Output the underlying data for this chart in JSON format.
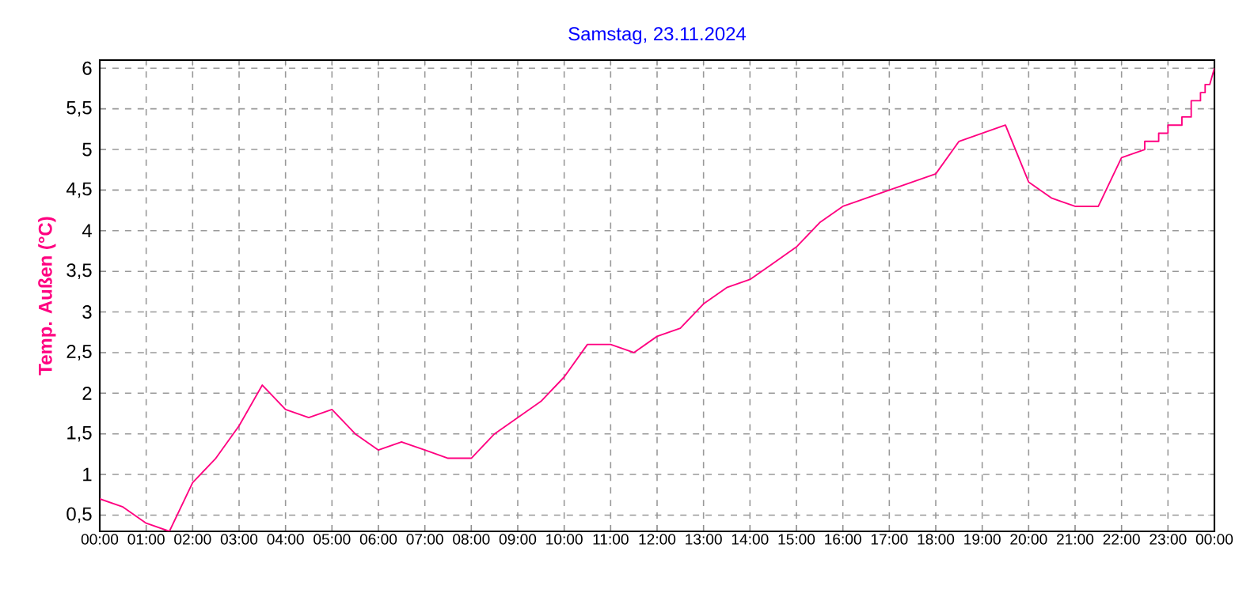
{
  "chart_data": {
    "type": "line",
    "title": "Samstag, 23.11.2024",
    "ylabel": "Temp. Außen (°C)",
    "x": [
      0,
      0.5,
      1,
      1.5,
      2,
      2.5,
      3,
      3.5,
      4,
      4.5,
      5,
      5.5,
      6,
      6.5,
      7,
      7.5,
      8,
      8.5,
      9,
      9.5,
      10,
      10.5,
      11,
      11.5,
      12,
      12.5,
      13,
      13.5,
      14,
      14.5,
      15,
      15.5,
      16,
      16.5,
      17,
      17.5,
      18,
      18.5,
      19,
      19.5,
      20,
      20.5,
      21,
      21.5,
      22,
      22.5,
      22.5,
      22.8,
      22.8,
      23.0,
      23.0,
      23.3,
      23.3,
      23.5,
      23.5,
      23.7,
      23.7,
      23.8,
      23.8,
      23.9,
      24
    ],
    "series": [
      {
        "color": "#ff0080",
        "values": [
          0.7,
          0.6,
          0.4,
          0.3,
          0.9,
          1.2,
          1.6,
          2.1,
          1.8,
          1.7,
          1.8,
          1.5,
          1.3,
          1.4,
          1.3,
          1.2,
          1.2,
          1.5,
          1.7,
          1.9,
          2.2,
          2.6,
          2.6,
          2.5,
          2.7,
          2.8,
          3.1,
          3.3,
          3.4,
          3.6,
          3.8,
          4.1,
          4.3,
          4.4,
          4.5,
          4.6,
          4.7,
          5.1,
          5.2,
          5.3,
          4.6,
          4.4,
          4.3,
          4.3,
          4.9,
          5.0,
          5.1,
          5.1,
          5.2,
          5.2,
          5.3,
          5.3,
          5.4,
          5.4,
          5.6,
          5.6,
          5.7,
          5.7,
          5.8,
          5.8,
          6.0
        ]
      }
    ],
    "xlim": [
      0,
      24
    ],
    "ylim": [
      0.3,
      6.1
    ],
    "xticks": [
      {
        "value": 0,
        "label": "00:00"
      },
      {
        "value": 1,
        "label": "01:00"
      },
      {
        "value": 2,
        "label": "02:00"
      },
      {
        "value": 3,
        "label": "03:00"
      },
      {
        "value": 4,
        "label": "04:00"
      },
      {
        "value": 5,
        "label": "05:00"
      },
      {
        "value": 6,
        "label": "06:00"
      },
      {
        "value": 7,
        "label": "07:00"
      },
      {
        "value": 8,
        "label": "08:00"
      },
      {
        "value": 9,
        "label": "09:00"
      },
      {
        "value": 10,
        "label": "10:00"
      },
      {
        "value": 11,
        "label": "11:00"
      },
      {
        "value": 12,
        "label": "12:00"
      },
      {
        "value": 13,
        "label": "13:00"
      },
      {
        "value": 14,
        "label": "14:00"
      },
      {
        "value": 15,
        "label": "15:00"
      },
      {
        "value": 16,
        "label": "16:00"
      },
      {
        "value": 17,
        "label": "17:00"
      },
      {
        "value": 18,
        "label": "18:00"
      },
      {
        "value": 19,
        "label": "19:00"
      },
      {
        "value": 20,
        "label": "20:00"
      },
      {
        "value": 21,
        "label": "21:00"
      },
      {
        "value": 22,
        "label": "22:00"
      },
      {
        "value": 23,
        "label": "23:00"
      },
      {
        "value": 24,
        "label": "00:00"
      }
    ],
    "yticks": [
      {
        "value": 0.5,
        "label": "0,5"
      },
      1,
      {
        "value": 1.5,
        "label": "1,5"
      },
      2,
      {
        "value": 2.5,
        "label": "2,5"
      },
      3,
      {
        "value": 3.5,
        "label": "3,5"
      },
      4,
      {
        "value": 4.5,
        "label": "4,5"
      },
      5,
      {
        "value": 5.5,
        "label": "5,5"
      },
      6
    ],
    "grid": true,
    "legend": false,
    "marker": "none",
    "line_style": "solid"
  }
}
